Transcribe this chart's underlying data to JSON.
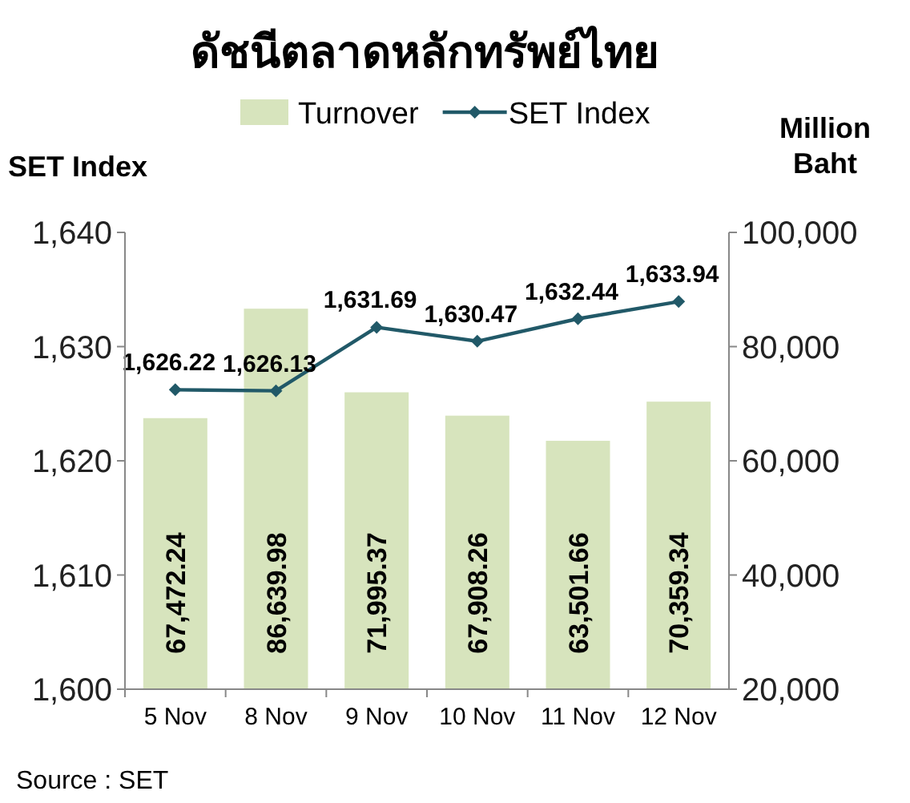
{
  "chart_data": {
    "type": "bar",
    "title": "ดัชนีตลาดหลักทรัพย์ไทย",
    "ylabel": "SET Index",
    "y2label": "Million Baht",
    "categories": [
      "5 Nov",
      "8 Nov",
      "9 Nov",
      "10 Nov",
      "11 Nov",
      "12 Nov"
    ],
    "series": [
      {
        "name": "Turnover",
        "axis": "y2",
        "color": "#d7e4bd",
        "values": [
          67472.24,
          86639.98,
          71995.37,
          67908.26,
          63501.66,
          70359.34
        ],
        "value_labels": [
          "67,472.24",
          "86,639.98",
          "71,995.37",
          "67,908.26",
          "63,501.66",
          "70,359.34"
        ]
      },
      {
        "name": "SET Index",
        "type": "line",
        "axis": "y",
        "color": "#215968",
        "marker": "diamond",
        "values": [
          1626.22,
          1626.13,
          1631.69,
          1630.47,
          1632.44,
          1633.94
        ],
        "value_labels": [
          "1,626.22",
          "1,626.13",
          "1,631.69",
          "1,630.47",
          "1,632.44",
          "1,633.94"
        ]
      }
    ],
    "ylim": [
      1600,
      1640
    ],
    "yticks": [
      {
        "value": 1600,
        "label": "1,600"
      },
      {
        "value": 1610,
        "label": "1,610"
      },
      {
        "value": 1620,
        "label": "1,620"
      },
      {
        "value": 1630,
        "label": "1,630"
      },
      {
        "value": 1640,
        "label": "1,640"
      }
    ],
    "y2lim": [
      20000,
      100000
    ],
    "y2ticks": [
      {
        "value": 20000,
        "label": "20,000"
      },
      {
        "value": 40000,
        "label": "40,000"
      },
      {
        "value": 60000,
        "label": "60,000"
      },
      {
        "value": 80000,
        "label": "80,000"
      },
      {
        "value": 100000,
        "label": "100,000"
      }
    ],
    "legend": "top",
    "annotations": [
      "Source : SET"
    ]
  }
}
